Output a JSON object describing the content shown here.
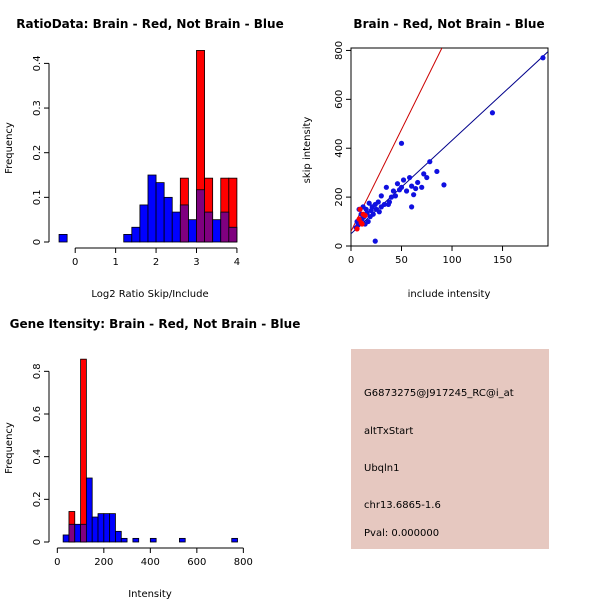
{
  "colors": {
    "red": "#ff0000",
    "blue": "#0000ff",
    "overlap": "#7f007f",
    "fit_red": "#cc0000",
    "fit_blue": "#00008b",
    "info_bg": "#e6c8c0",
    "pval": "#cc0000",
    "dot": "#1010e0"
  },
  "chart_data": [
    {
      "id": "ratio",
      "type": "histogram",
      "title": "RatioData: Brain - Red, Not Brain - Blue",
      "xlabel": "Log2 Ratio Skip/Include",
      "ylabel": "Frequency",
      "xlim": [
        -0.5,
        4.2
      ],
      "ylim": [
        0,
        0.43
      ],
      "xticks": [
        0,
        1,
        2,
        3,
        4
      ],
      "yticks": [
        0.0,
        0.1,
        0.2,
        0.3,
        0.4
      ],
      "bin_width": 0.2,
      "series": [
        {
          "name": "Not Brain",
          "color": "blue",
          "bins": [
            [
              -0.4,
              0.017
            ],
            [
              1.2,
              0.017
            ],
            [
              1.4,
              0.033
            ],
            [
              1.6,
              0.083
            ],
            [
              1.8,
              0.15
            ],
            [
              2.0,
              0.133
            ],
            [
              2.2,
              0.1
            ],
            [
              2.4,
              0.067
            ],
            [
              2.6,
              0.083
            ],
            [
              2.8,
              0.05
            ],
            [
              3.0,
              0.117
            ],
            [
              3.2,
              0.067
            ],
            [
              3.4,
              0.05
            ],
            [
              3.6,
              0.067
            ],
            [
              3.8,
              0.033
            ]
          ]
        },
        {
          "name": "Brain",
          "color": "red",
          "bins": [
            [
              2.6,
              0.143
            ],
            [
              3.0,
              0.429
            ],
            [
              3.2,
              0.143
            ],
            [
              3.6,
              0.143
            ],
            [
              3.8,
              0.143
            ]
          ]
        }
      ]
    },
    {
      "id": "scatter",
      "type": "scatter",
      "title": "Brain - Red, Not Brain - Blue",
      "xlabel": "include intensity",
      "ylabel": "skip intensity",
      "xlim": [
        0,
        195
      ],
      "ylim": [
        0,
        810
      ],
      "xticks": [
        0,
        50,
        100,
        150
      ],
      "yticks": [
        0,
        200,
        400,
        600,
        800
      ],
      "fit_lines": [
        {
          "name": "Brain",
          "color": "fit_red",
          "from": [
            0,
            60
          ],
          "to": [
            90,
            810
          ]
        },
        {
          "name": "Not Brain",
          "color": "fit_blue",
          "from": [
            0,
            50
          ],
          "to": [
            195,
            795
          ]
        }
      ],
      "series": [
        {
          "name": "Not Brain",
          "color": "dot",
          "points": [
            [
              190,
              770
            ],
            [
              140,
              545
            ],
            [
              50,
              420
            ],
            [
              92,
              250
            ],
            [
              85,
              305
            ],
            [
              78,
              345
            ],
            [
              75,
              280
            ],
            [
              72,
              295
            ],
            [
              70,
              240
            ],
            [
              66,
              260
            ],
            [
              64,
              235
            ],
            [
              62,
              210
            ],
            [
              60,
              245
            ],
            [
              58,
              280
            ],
            [
              55,
              225
            ],
            [
              52,
              270
            ],
            [
              50,
              240
            ],
            [
              48,
              230
            ],
            [
              46,
              255
            ],
            [
              44,
              205
            ],
            [
              42,
              225
            ],
            [
              40,
              200
            ],
            [
              38,
              180
            ],
            [
              35,
              240
            ],
            [
              33,
              170
            ],
            [
              30,
              160
            ],
            [
              28,
              140
            ],
            [
              27,
              180
            ],
            [
              25,
              150
            ],
            [
              24,
              170
            ],
            [
              22,
              130
            ],
            [
              21,
              160
            ],
            [
              20,
              145
            ],
            [
              19,
              120
            ],
            [
              18,
              175
            ],
            [
              17,
              100
            ],
            [
              16,
              135
            ],
            [
              15,
              150
            ],
            [
              14,
              90
            ],
            [
              13,
              120
            ],
            [
              12,
              160
            ],
            [
              11,
              110
            ],
            [
              10,
              130
            ],
            [
              9,
              95
            ],
            [
              8,
              150
            ],
            [
              7,
              85
            ],
            [
              6,
              100
            ],
            [
              5,
              75
            ],
            [
              24,
              20
            ],
            [
              60,
              160
            ],
            [
              30,
              205
            ],
            [
              37,
              170
            ]
          ]
        },
        {
          "name": "Brain",
          "color": "red",
          "points": [
            [
              9,
              150
            ],
            [
              12,
              130
            ],
            [
              8,
              110
            ],
            [
              6,
              70
            ],
            [
              10,
              95
            ],
            [
              14,
              125
            ],
            [
              11,
              90
            ]
          ]
        }
      ]
    },
    {
      "id": "intensity",
      "type": "histogram",
      "title": "Gene Itensity: Brain - Red, Not Brain - Blue",
      "xlabel": "Intensity",
      "ylabel": "Frequency",
      "xlim": [
        -10,
        820
      ],
      "ylim": [
        0,
        0.9
      ],
      "xticks": [
        0,
        200,
        400,
        600,
        800
      ],
      "yticks": [
        0.0,
        0.2,
        0.4,
        0.6,
        0.8
      ],
      "bin_width": 25,
      "series": [
        {
          "name": "Not Brain",
          "color": "blue",
          "bins": [
            [
              25,
              0.033
            ],
            [
              50,
              0.083
            ],
            [
              75,
              0.083
            ],
            [
              100,
              0.083
            ],
            [
              125,
              0.3
            ],
            [
              150,
              0.117
            ],
            [
              175,
              0.133
            ],
            [
              200,
              0.133
            ],
            [
              225,
              0.133
            ],
            [
              250,
              0.05
            ],
            [
              275,
              0.017
            ],
            [
              325,
              0.017
            ],
            [
              400,
              0.017
            ],
            [
              525,
              0.017
            ],
            [
              750,
              0.017
            ]
          ]
        },
        {
          "name": "Brain",
          "color": "red",
          "bins": [
            [
              50,
              0.143
            ],
            [
              100,
              0.857
            ]
          ]
        }
      ]
    }
  ],
  "info": {
    "probe": "G6873275@J917245_RC@i_at",
    "event": "altTxStart",
    "gene": "Ubqln1",
    "location": "chr13.6865-1.6",
    "pval": "Pval: 0.000000"
  }
}
